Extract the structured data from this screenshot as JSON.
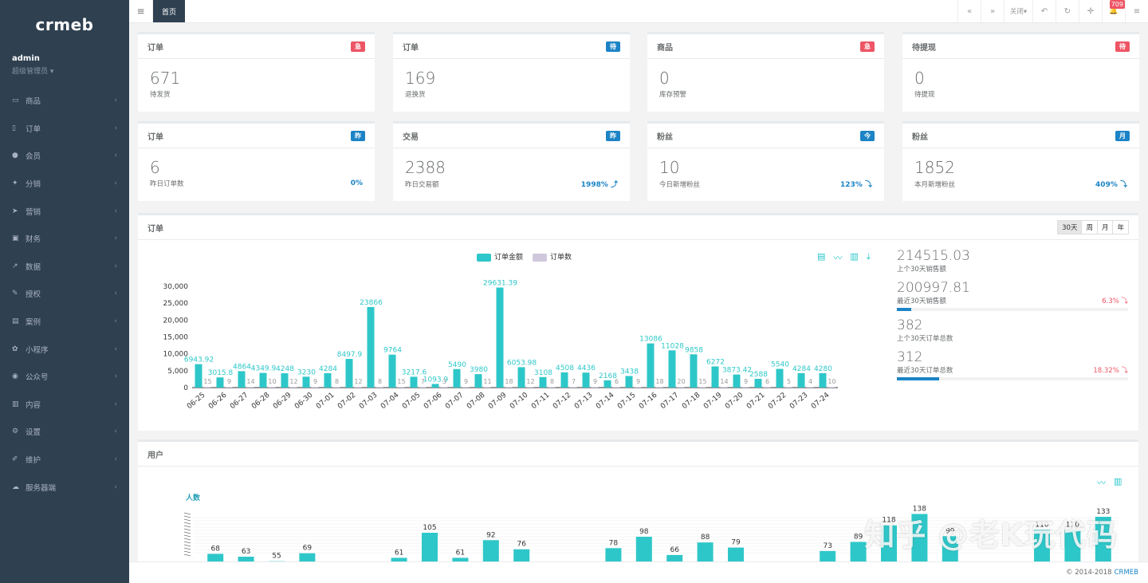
{
  "sidebar": {
    "logo": "crmeb",
    "user_name": "admin",
    "user_role": "超级管理员 ▾",
    "items": [
      {
        "label": "商品",
        "icon": "▭"
      },
      {
        "label": "订单",
        "icon": "▯"
      },
      {
        "label": "会员",
        "icon": "●"
      },
      {
        "label": "分销",
        "icon": "✦"
      },
      {
        "label": "营销",
        "icon": "➤"
      },
      {
        "label": "财务",
        "icon": "▣"
      },
      {
        "label": "数据",
        "icon": "↗"
      },
      {
        "label": "授权",
        "icon": "✎"
      },
      {
        "label": "案例",
        "icon": "▤"
      },
      {
        "label": "小程序",
        "icon": "✿"
      },
      {
        "label": "公众号",
        "icon": "◉"
      },
      {
        "label": "内容",
        "icon": "▥"
      },
      {
        "label": "设置",
        "icon": "⚙"
      },
      {
        "label": "维护",
        "icon": "✐"
      },
      {
        "label": "服务器端",
        "icon": "☁"
      }
    ],
    "arrow": "‹"
  },
  "topbar": {
    "menu_icon": "≡",
    "home_tab": "首页",
    "buttons": [
      "«",
      "»",
      "关闭▾",
      "↶",
      "↻",
      "✛",
      "🔔",
      "≡"
    ],
    "badge": "709"
  },
  "row1": [
    {
      "title": "订单",
      "badge": "急",
      "badge_color": "#ed5565",
      "value": "671",
      "desc": "待发货"
    },
    {
      "title": "订单",
      "badge": "待",
      "badge_color": "#1c84c6",
      "value": "169",
      "desc": "退换货"
    },
    {
      "title": "商品",
      "badge": "急",
      "badge_color": "#ed5565",
      "value": "0",
      "desc": "库存预警"
    },
    {
      "title": "待提现",
      "badge": "待",
      "badge_color": "#ed5565",
      "value": "0",
      "desc": "待提现"
    }
  ],
  "row2": [
    {
      "title": "订单",
      "badge": "昨",
      "badge_color": "#1c84c6",
      "value": "6",
      "desc": "昨日订单数",
      "pct": "0%"
    },
    {
      "title": "交易",
      "badge": "昨",
      "badge_color": "#1c84c6",
      "value": "2388",
      "desc": "昨日交易额",
      "pct": "1998% ⤴"
    },
    {
      "title": "粉丝",
      "badge": "今",
      "badge_color": "#1c84c6",
      "value": "10",
      "desc": "今日新增粉丝",
      "pct": "123% ⤵"
    },
    {
      "title": "粉丝",
      "badge": "月",
      "badge_color": "#1c84c6",
      "value": "1852",
      "desc": "本月新增粉丝",
      "pct": "409% ⤵"
    }
  ],
  "orders_panel": {
    "title": "订单",
    "periods": [
      "30天",
      "周",
      "月",
      "年"
    ],
    "legend": [
      {
        "name": "订单金额",
        "color": "#2ec7c9"
      },
      {
        "name": "订单数",
        "color": "#b6a2de"
      }
    ],
    "tool_icons": [
      "▤",
      "〰",
      "▥",
      "⤓"
    ],
    "stats": [
      {
        "value": "214515.03",
        "label": "上个30天销售额",
        "pct": "",
        "bar": 0
      },
      {
        "value": "200997.81",
        "label": "最近30天销售额",
        "pct": "6.3% ⤵",
        "bar": 0.063
      },
      {
        "value": "382",
        "label": "上个30天订单总数",
        "pct": "",
        "bar": 0
      },
      {
        "value": "312",
        "label": "最近30天订单总数",
        "pct": "18.32% ⤵",
        "bar": 0.1832
      }
    ]
  },
  "chart_data": [
    {
      "type": "bar",
      "categories": [
        "06-25",
        "06-26",
        "06-27",
        "06-28",
        "06-29",
        "06-30",
        "07-01",
        "07-02",
        "07-03",
        "07-04",
        "07-05",
        "07-06",
        "07-07",
        "07-08",
        "07-09",
        "07-10",
        "07-11",
        "07-12",
        "07-13",
        "07-14",
        "07-15",
        "07-16",
        "07-17",
        "07-18",
        "07-19",
        "07-20",
        "07-21",
        "07-22",
        "07-23",
        "07-24"
      ],
      "series": [
        {
          "name": "订单金额",
          "color": "#2ec7c9",
          "values": [
            6943.92,
            3015.8,
            4864,
            4349.9,
            4248,
            3230,
            4284,
            8497.9,
            23866,
            9764,
            3217.6,
            1093.9,
            5490,
            3980,
            29631.39,
            6053.98,
            3108,
            4508,
            4436,
            2168,
            3438,
            13086,
            11028,
            9858,
            6272,
            3873.42,
            2588,
            5540,
            4284,
            4280
          ]
        },
        {
          "name": "订单数",
          "color": "#b6a2de",
          "values": [
            15,
            9,
            14,
            10,
            12,
            9,
            8,
            12,
            8,
            15,
            7,
            3,
            9,
            11,
            18,
            12,
            8,
            7,
            9,
            6,
            9,
            18,
            20,
            15,
            14,
            9,
            6,
            5,
            4,
            10
          ]
        }
      ],
      "ylim": [
        0,
        30000
      ],
      "yticks": [
        "0",
        "5,000",
        "10,000",
        "15,000",
        "20,000",
        "25,000",
        "30,000"
      ],
      "bar_labels": [
        "6943.92",
        "3015.8",
        "4864",
        "4349.9",
        "4248",
        "3230",
        "4284",
        "8497.9",
        "23866",
        "9764",
        "3217.6",
        "1093.9",
        "5490",
        "3980",
        "29631.39",
        "6053.98",
        "3108",
        "4508",
        "4436",
        "2168",
        "3438",
        "13086",
        "11028",
        "9858",
        "6272",
        "3873.42",
        "2588",
        "5540",
        "4284",
        "4280"
      ]
    },
    {
      "type": "bar",
      "ylabel": "人数",
      "series": [
        {
          "values": [
            68,
            63,
            55,
            69,
            null,
            null,
            61,
            105,
            61,
            92,
            76,
            null,
            null,
            78,
            98,
            66,
            88,
            79,
            null,
            null,
            73,
            89,
            118,
            138,
            99,
            null,
            null,
            110,
            110,
            133
          ]
        }
      ],
      "ylim": [
        0,
        140
      ],
      "color": "#2ec7c9"
    }
  ],
  "users_panel": {
    "title": "用户",
    "ylabel": "人数",
    "tool_icons": [
      "〰",
      "▥"
    ]
  },
  "footer": {
    "copyright": "© 2014-2018",
    "brand": "CRMEB"
  },
  "watermark": "知乎 @老K玩代码"
}
